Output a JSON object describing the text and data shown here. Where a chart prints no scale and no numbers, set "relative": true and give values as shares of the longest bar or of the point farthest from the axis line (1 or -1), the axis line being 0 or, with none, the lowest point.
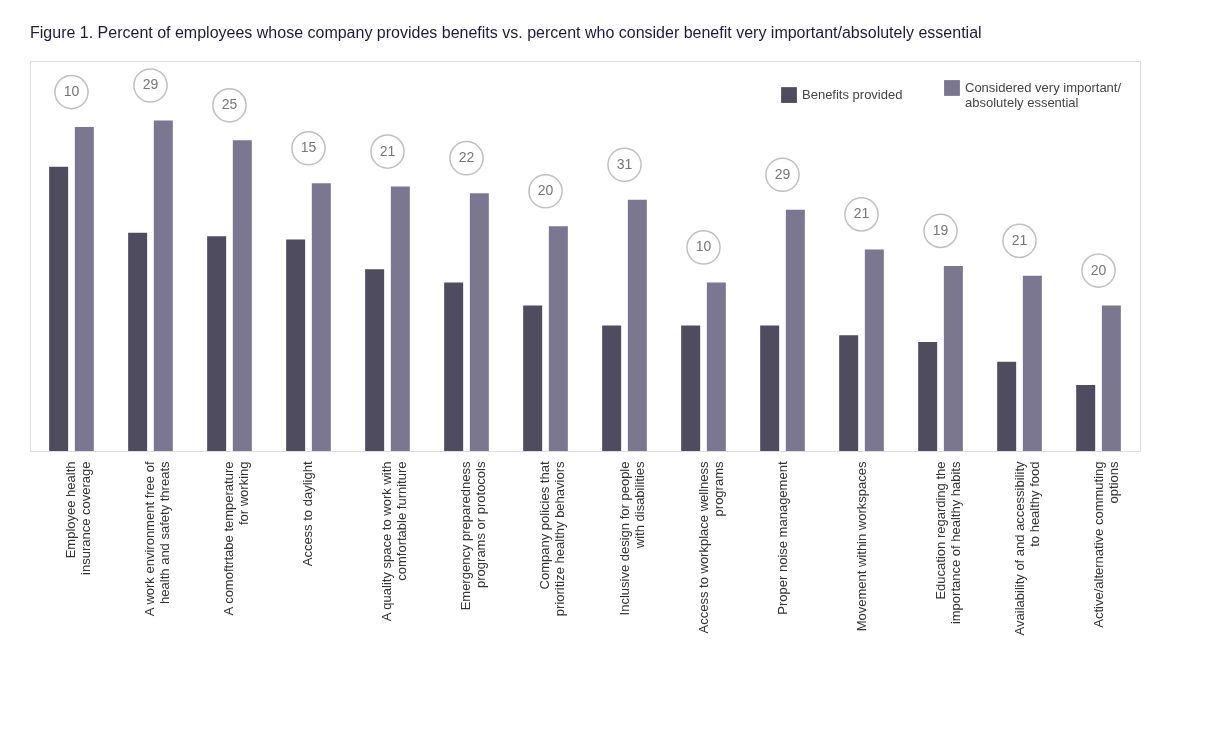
{
  "chart_data": {
    "type": "bar",
    "title": "Figure 1. Percent of employees whose company provides benefits vs. percent who consider benefit very important/absolutely essential",
    "relative": true,
    "legend": "top right",
    "categories": [
      "Employee health\ninsurance coverage",
      "A work environment free of\nhealth and safety threats",
      "A comoftrtabe temperature\nfor working",
      "Access to daylight",
      "A quality space to work with\ncomfortable furniture",
      "Emergency preparedness\nprograms or protocols",
      "Company policies that\nprioritize healthy behaviors",
      "Inclusive design for people\nwith disabilities",
      "Access to workplace wellness\nprograms",
      "Proper noise management",
      "Movement within workspaces",
      "Education regarding the\nimportance of healthy habits",
      "Availability of and accessibility\nto healthy food",
      "Active/alternative commuting\noptions"
    ],
    "series": [
      {
        "name": "Benefits provided",
        "color": "#4f4c5f",
        "values": [
          0.86,
          0.66,
          0.65,
          0.64,
          0.55,
          0.51,
          0.44,
          0.38,
          0.38,
          0.38,
          0.35,
          0.33,
          0.27,
          0.2
        ]
      },
      {
        "name": "Considered very important/\nabsolutely essential",
        "color": "#7c7791",
        "values": [
          0.98,
          1.0,
          0.94,
          0.81,
          0.8,
          0.78,
          0.68,
          0.76,
          0.51,
          0.73,
          0.61,
          0.56,
          0.53,
          0.44
        ]
      }
    ],
    "annotations": [
      {
        "text": "10",
        "x": "Employee health\ninsurance coverage",
        "y": 0.98
      },
      {
        "text": "29",
        "x": "A work environment free of\nhealth and safety threats",
        "y": 1.0
      },
      {
        "text": "25",
        "x": "A comoftrtabe temperature\nfor working",
        "y": 0.94
      },
      {
        "text": "15",
        "x": "Access to daylight",
        "y": 0.81
      },
      {
        "text": "21",
        "x": "A quality space to work with\ncomfortable furniture",
        "y": 0.8
      },
      {
        "text": "22",
        "x": "Emergency preparedness\nprograms or protocols",
        "y": 0.78
      },
      {
        "text": "20",
        "x": "Company policies that\nprioritize healthy behaviors",
        "y": 0.68
      },
      {
        "text": "31",
        "x": "Inclusive design for people\nwith disabilities",
        "y": 0.76
      },
      {
        "text": "10",
        "x": "Access to workplace wellness\nprograms",
        "y": 0.51
      },
      {
        "text": "29",
        "x": "Proper noise management",
        "y": 0.73
      },
      {
        "text": "21",
        "x": "Movement within workspaces",
        "y": 0.61
      },
      {
        "text": "19",
        "x": "Education regarding the\nimportance of healthy habits",
        "y": 0.56
      },
      {
        "text": "21",
        "x": "Availability of and accessibility\nto healthy food",
        "y": 0.53
      },
      {
        "text": "20",
        "x": "Active/alternative commuting\noptions",
        "y": 0.44
      }
    ]
  }
}
